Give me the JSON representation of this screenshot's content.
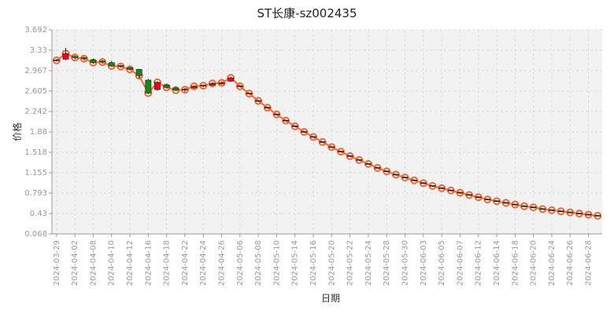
{
  "chart_data": {
    "type": "candlestick+line",
    "title": "ST长康-sz002435",
    "xlabel": "日期",
    "ylabel": "价格",
    "ylim": [
      0.068,
      3.692
    ],
    "yticks": [
      "3.692",
      "3.33",
      "2.967",
      "2.605",
      "2.242",
      "1.88",
      "1.518",
      "1.155",
      "0.793",
      "0.43",
      "0.068"
    ],
    "grid": true,
    "colors": {
      "up": "#e8001c",
      "down": "#128a12",
      "line": "#ef6a3a",
      "marker": "#ef6a3a",
      "plot_bg": "#f2f2f2"
    },
    "x": [
      "2024-03-29",
      "2024-04-01",
      "2024-04-02",
      "2024-04-03",
      "2024-04-08",
      "2024-04-09",
      "2024-04-10",
      "2024-04-11",
      "2024-04-12",
      "2024-04-15",
      "2024-04-16",
      "2024-04-17",
      "2024-04-18",
      "2024-04-19",
      "2024-04-22",
      "2024-04-23",
      "2024-04-24",
      "2024-04-25",
      "2024-04-26",
      "2024-04-29",
      "2024-05-06",
      "2024-05-07",
      "2024-05-08",
      "2024-05-09",
      "2024-05-10",
      "2024-05-13",
      "2024-05-14",
      "2024-05-15",
      "2024-05-16",
      "2024-05-17",
      "2024-05-20",
      "2024-05-21",
      "2024-05-22",
      "2024-05-23",
      "2024-05-24",
      "2024-05-27",
      "2024-05-28",
      "2024-05-29",
      "2024-05-30",
      "2024-05-31",
      "2024-06-03",
      "2024-06-04",
      "2024-06-05",
      "2024-06-06",
      "2024-06-07",
      "2024-06-11",
      "2024-06-12",
      "2024-06-13",
      "2024-06-14",
      "2024-06-17",
      "2024-06-18",
      "2024-06-19",
      "2024-06-20",
      "2024-06-21",
      "2024-06-24",
      "2024-06-25",
      "2024-06-26",
      "2024-06-27",
      "2024-06-28",
      "2024-07-01"
    ],
    "xtick_labels_shown": [
      "2024-03-29",
      "2024-04-02",
      "2024-04-08",
      "2024-04-10",
      "2024-04-12",
      "2024-04-16",
      "2024-04-18",
      "2024-04-22",
      "2024-04-24",
      "2024-04-26",
      "2024-05-06",
      "2024-05-08",
      "2024-05-10",
      "2024-05-14",
      "2024-05-16",
      "2024-05-20",
      "2024-05-22",
      "2024-05-24",
      "2024-05-28",
      "2024-05-30",
      "2024-06-03",
      "2024-06-05",
      "2024-06-07",
      "2024-06-12",
      "2024-06-14",
      "2024-06-18",
      "2024-06-20",
      "2024-06-24",
      "2024-06-26",
      "2024-06-28"
    ],
    "ohlc": [
      [
        3.15,
        3.17,
        3.13,
        3.15
      ],
      [
        3.17,
        3.37,
        3.15,
        3.27
      ],
      [
        3.22,
        3.24,
        3.17,
        3.2
      ],
      [
        3.19,
        3.22,
        3.15,
        3.18
      ],
      [
        3.16,
        3.18,
        3.09,
        3.11
      ],
      [
        3.13,
        3.16,
        3.09,
        3.12
      ],
      [
        3.11,
        3.14,
        3.04,
        3.05
      ],
      [
        3.05,
        3.07,
        3.02,
        3.04
      ],
      [
        3.02,
        3.04,
        2.98,
        2.99
      ],
      [
        2.99,
        3.0,
        2.83,
        2.88
      ],
      [
        2.8,
        2.82,
        2.55,
        2.57
      ],
      [
        2.63,
        2.78,
        2.61,
        2.76
      ],
      [
        2.71,
        2.73,
        2.65,
        2.67
      ],
      [
        2.66,
        2.68,
        2.61,
        2.62
      ],
      [
        2.62,
        2.66,
        2.59,
        2.63
      ],
      [
        2.66,
        2.7,
        2.65,
        2.69
      ],
      [
        2.69,
        2.72,
        2.67,
        2.7
      ],
      [
        2.71,
        2.76,
        2.7,
        2.74
      ],
      [
        2.73,
        2.77,
        2.72,
        2.75
      ],
      [
        2.78,
        2.86,
        2.77,
        2.84
      ],
      [
        2.69,
        2.69,
        2.69,
        2.69
      ],
      [
        2.56,
        2.56,
        2.56,
        2.56
      ],
      [
        2.43,
        2.43,
        2.43,
        2.43
      ],
      [
        2.31,
        2.31,
        2.31,
        2.31
      ],
      [
        2.19,
        2.19,
        2.19,
        2.19
      ],
      [
        2.08,
        2.08,
        2.08,
        2.08
      ],
      [
        1.98,
        1.98,
        1.98,
        1.98
      ],
      [
        1.88,
        1.88,
        1.88,
        1.88
      ],
      [
        1.79,
        1.79,
        1.79,
        1.79
      ],
      [
        1.7,
        1.7,
        1.7,
        1.7
      ],
      [
        1.61,
        1.61,
        1.61,
        1.61
      ],
      [
        1.53,
        1.53,
        1.53,
        1.53
      ],
      [
        1.45,
        1.45,
        1.45,
        1.45
      ],
      [
        1.38,
        1.38,
        1.38,
        1.38
      ],
      [
        1.31,
        1.31,
        1.31,
        1.31
      ],
      [
        1.24,
        1.24,
        1.24,
        1.24
      ],
      [
        1.18,
        1.18,
        1.18,
        1.18
      ],
      [
        1.12,
        1.12,
        1.12,
        1.12
      ],
      [
        1.07,
        1.07,
        1.07,
        1.07
      ],
      [
        1.02,
        1.02,
        1.02,
        1.02
      ],
      [
        0.97,
        0.97,
        0.97,
        0.97
      ],
      [
        0.92,
        0.92,
        0.92,
        0.92
      ],
      [
        0.88,
        0.88,
        0.88,
        0.88
      ],
      [
        0.84,
        0.84,
        0.84,
        0.84
      ],
      [
        0.8,
        0.8,
        0.8,
        0.8
      ],
      [
        0.76,
        0.76,
        0.76,
        0.76
      ],
      [
        0.72,
        0.72,
        0.72,
        0.72
      ],
      [
        0.68,
        0.68,
        0.68,
        0.68
      ],
      [
        0.65,
        0.65,
        0.65,
        0.65
      ],
      [
        0.62,
        0.62,
        0.62,
        0.62
      ],
      [
        0.59,
        0.59,
        0.59,
        0.59
      ],
      [
        0.56,
        0.56,
        0.56,
        0.56
      ],
      [
        0.54,
        0.54,
        0.54,
        0.54
      ],
      [
        0.51,
        0.51,
        0.51,
        0.51
      ],
      [
        0.49,
        0.49,
        0.49,
        0.49
      ],
      [
        0.47,
        0.47,
        0.47,
        0.47
      ],
      [
        0.45,
        0.45,
        0.45,
        0.45
      ],
      [
        0.43,
        0.43,
        0.43,
        0.43
      ],
      [
        0.41,
        0.41,
        0.41,
        0.41
      ],
      [
        0.39,
        0.39,
        0.39,
        0.39
      ]
    ],
    "line_values": [
      3.15,
      3.27,
      3.2,
      3.18,
      3.11,
      3.12,
      3.05,
      3.04,
      2.99,
      2.88,
      2.57,
      2.76,
      2.67,
      2.62,
      2.63,
      2.69,
      2.7,
      2.74,
      2.75,
      2.84,
      2.69,
      2.56,
      2.43,
      2.31,
      2.19,
      2.08,
      1.98,
      1.88,
      1.79,
      1.7,
      1.61,
      1.53,
      1.45,
      1.38,
      1.31,
      1.24,
      1.18,
      1.12,
      1.07,
      1.02,
      0.97,
      0.92,
      0.88,
      0.84,
      0.8,
      0.76,
      0.72,
      0.68,
      0.65,
      0.62,
      0.59,
      0.56,
      0.54,
      0.51,
      0.49,
      0.47,
      0.45,
      0.43,
      0.41,
      0.39
    ]
  }
}
